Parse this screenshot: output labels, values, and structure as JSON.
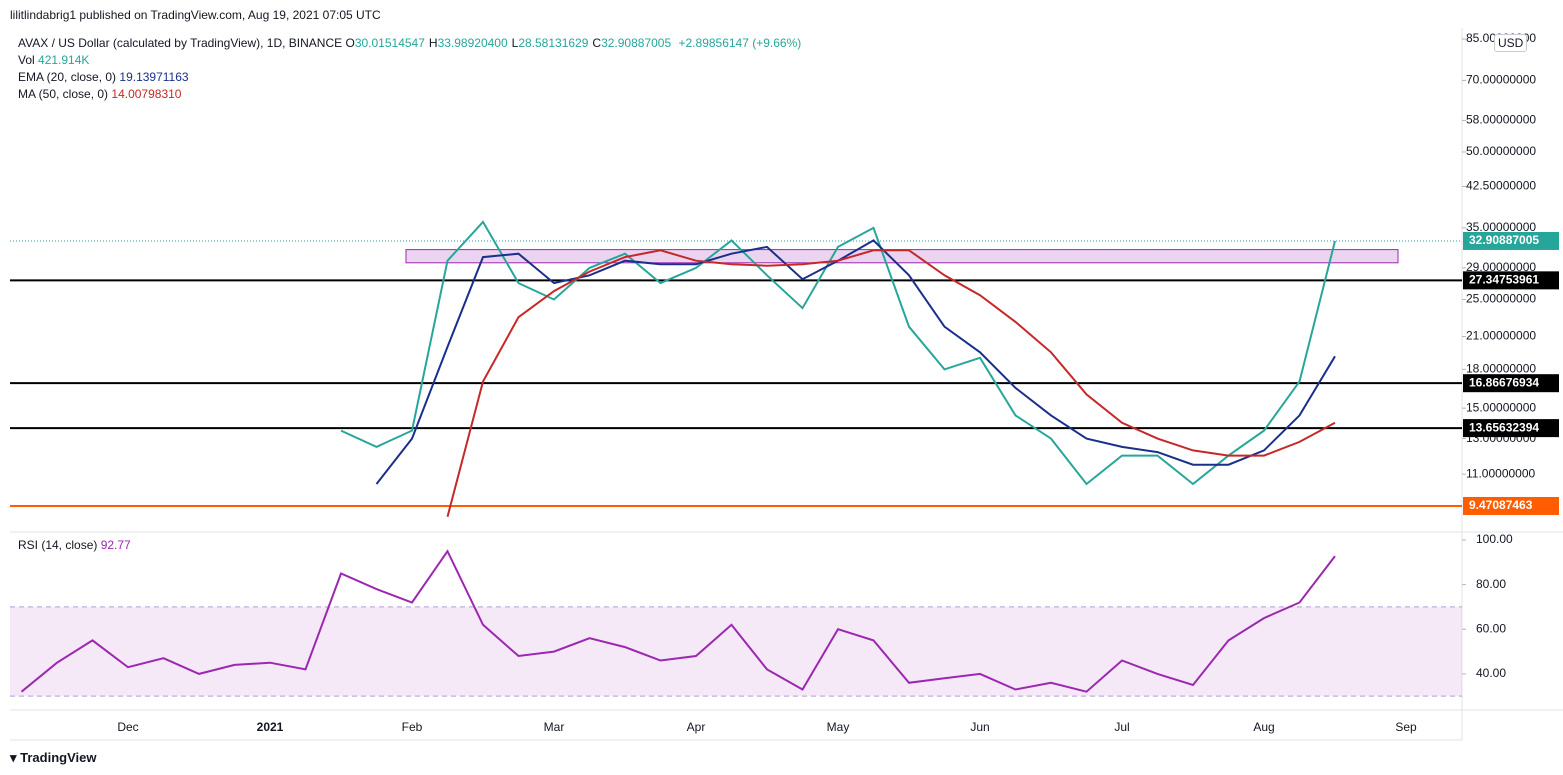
{
  "header": {
    "published": "lilitlindabrig1 published on TradingView.com, Aug 19, 2021 07:05 UTC",
    "symbol": "AVAX / US Dollar (calculated by TradingView), 1D, BINANCE",
    "ohlc": [
      {
        "key": "O",
        "value": "30.01514547"
      },
      {
        "key": "H",
        "value": "33.98920400"
      },
      {
        "key": "L",
        "value": "28.58131629"
      },
      {
        "key": "C",
        "value": "32.90887005"
      }
    ],
    "change": "+2.89856147 (+9.66%)",
    "vol_label": "Vol",
    "vol": "421.914K",
    "ema_label": "EMA (20, close, 0)",
    "ema": "19.13971163",
    "ma_label": "MA (50, close, 0)",
    "ma": "14.00798310",
    "currency": "USD",
    "footer": "TradingView"
  },
  "chart_data": [
    {
      "type": "line",
      "log_scale": true,
      "ylim": [
        8.46,
        88.7
      ],
      "yticks": [
        {
          "value": 85,
          "label": "85.00000000"
        },
        {
          "value": 70,
          "label": "70.00000000"
        },
        {
          "value": 58,
          "label": "58.00000000"
        },
        {
          "value": 50,
          "label": "50.00000000"
        },
        {
          "value": 42.5,
          "label": "42.50000000"
        },
        {
          "value": 35,
          "label": "35.00000000"
        },
        {
          "value": 29,
          "label": "29.00000000"
        },
        {
          "value": 25,
          "label": "25.00000000"
        },
        {
          "value": 21,
          "label": "21.00000000"
        },
        {
          "value": 18,
          "label": "18.00000000"
        },
        {
          "value": 15,
          "label": "15.00000000"
        },
        {
          "value": 13,
          "label": "13.00000000"
        },
        {
          "value": 11,
          "label": "11.00000000"
        }
      ],
      "categories": [
        null,
        null,
        null,
        "Dec",
        null,
        null,
        null,
        "2021",
        null,
        null,
        null,
        "Feb",
        null,
        null,
        null,
        "Mar",
        null,
        null,
        null,
        "Apr",
        null,
        null,
        null,
        "May",
        null,
        null,
        null,
        "Jun",
        null,
        null,
        null,
        "Jul",
        null,
        null,
        null,
        "Aug",
        null,
        null,
        null,
        "Sep"
      ],
      "series": [
        {
          "name": "AVAX / US Dollar",
          "color": "#26a69a",
          "values": [
            null,
            null,
            null,
            null,
            null,
            null,
            null,
            null,
            null,
            13.5,
            12.5,
            13.5,
            30,
            36,
            27,
            25,
            29,
            31,
            27,
            29,
            33,
            28,
            24,
            32,
            35,
            22,
            18,
            19,
            14.5,
            13,
            10.5,
            12,
            12,
            10.5,
            12,
            13.5,
            17,
            32.90887005,
            null,
            null
          ]
        },
        {
          "name": "EMA (20, close, 0)",
          "color": "#1a2f8c",
          "values": [
            null,
            null,
            null,
            null,
            null,
            null,
            null,
            null,
            null,
            null,
            10.5,
            13,
            20,
            30.5,
            31,
            27,
            28,
            30,
            29.5,
            29.5,
            31,
            32,
            27.5,
            30,
            33,
            28,
            22,
            19.5,
            16.5,
            14.5,
            13,
            12.5,
            12.2,
            11.5,
            11.5,
            12.3,
            14.5,
            19.14,
            null,
            null
          ]
        },
        {
          "name": "MA (50, close, 0)",
          "color": "#c62828",
          "values": [
            null,
            null,
            null,
            null,
            null,
            null,
            null,
            null,
            null,
            null,
            null,
            null,
            9,
            17,
            23,
            26,
            28.5,
            30.5,
            31.5,
            30,
            29.5,
            29.3,
            29.5,
            30,
            31.5,
            31.5,
            28,
            25.5,
            22.5,
            19.5,
            16,
            14,
            13,
            12.3,
            12,
            12,
            12.8,
            14.01,
            null,
            null
          ]
        }
      ],
      "levels": [
        {
          "value": 27.34753961,
          "color": "#000000"
        },
        {
          "value": 16.86676934,
          "color": "#000000"
        },
        {
          "value": 13.65632394,
          "color": "#000000"
        },
        {
          "value": 9.47087463,
          "color": "#ff5d00"
        }
      ],
      "last_price": {
        "value": 32.90887005,
        "color": "#26a69a"
      },
      "zone": {
        "from": 29.7,
        "to": 31.6,
        "color": "#9c27b0"
      }
    },
    {
      "type": "line",
      "ylim": [
        24.7,
        100.9
      ],
      "yticks": [
        {
          "value": 100,
          "label": "100.00"
        },
        {
          "value": 80,
          "label": "80.00"
        },
        {
          "value": 60,
          "label": "60.00"
        },
        {
          "value": 40,
          "label": "40.00"
        }
      ],
      "band": [
        30,
        70
      ],
      "series": [
        {
          "name": "RSI (14, close)",
          "value_label": "92.77",
          "color": "#9c27b0",
          "values": [
            32,
            45,
            55,
            43,
            47,
            40,
            44,
            45,
            42,
            85,
            78,
            72,
            95,
            62,
            48,
            50,
            56,
            52,
            46,
            48,
            62,
            42,
            33,
            60,
            55,
            36,
            38,
            40,
            33,
            36,
            32,
            46,
            40,
            35,
            55,
            65,
            72,
            92.77,
            null,
            null
          ]
        }
      ]
    }
  ]
}
